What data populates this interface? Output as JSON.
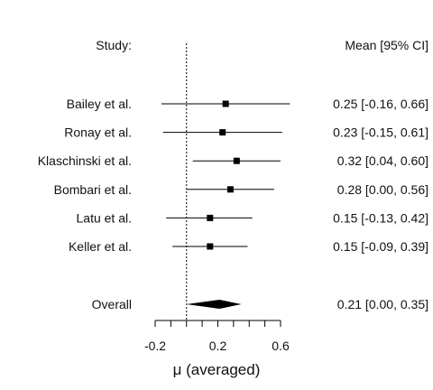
{
  "chart_data": {
    "type": "forest",
    "headers": {
      "study": "Study:",
      "estimate": "Mean [95% CI]"
    },
    "studies": [
      {
        "name": "Bailey et al.",
        "mean": 0.25,
        "lower": -0.16,
        "upper": 0.66,
        "label": "0.25 [-0.16, 0.66]"
      },
      {
        "name": "Ronay et al.",
        "mean": 0.23,
        "lower": -0.15,
        "upper": 0.61,
        "label": "0.23 [-0.15, 0.61]"
      },
      {
        "name": "Klaschinski et al.",
        "mean": 0.32,
        "lower": 0.04,
        "upper": 0.6,
        "label": "0.32 [0.04, 0.60]"
      },
      {
        "name": "Bombari et al.",
        "mean": 0.28,
        "lower": 0.0,
        "upper": 0.56,
        "label": "0.28 [0.00, 0.56]"
      },
      {
        "name": "Latu et al.",
        "mean": 0.15,
        "lower": -0.13,
        "upper": 0.42,
        "label": "0.15 [-0.13, 0.42]"
      },
      {
        "name": "Keller et al.",
        "mean": 0.15,
        "lower": -0.09,
        "upper": 0.39,
        "label": "0.15 [-0.09, 0.39]"
      }
    ],
    "overall": {
      "name": "Overall",
      "mean": 0.21,
      "lower": 0.0,
      "upper": 0.35,
      "label": "0.21 [0.00, 0.35]"
    },
    "reference_line": 0,
    "xlim": [
      -0.2,
      0.6
    ],
    "xticks": [
      -0.2,
      0.2,
      0.6
    ],
    "xtick_labels": [
      "-0.2",
      "0.2",
      "0.6"
    ],
    "xlabel": "μ (averaged)",
    "grid": false
  }
}
